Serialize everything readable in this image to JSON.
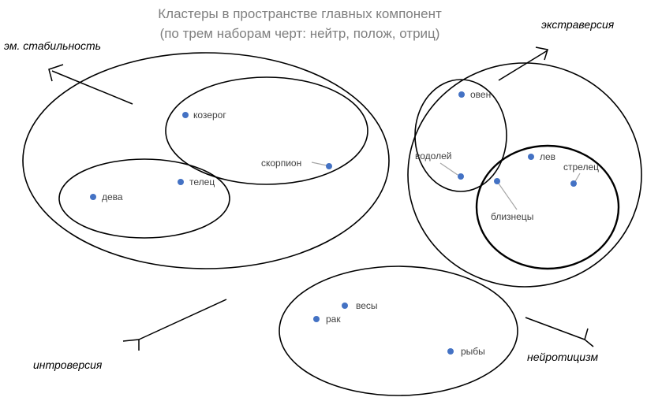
{
  "title_line1": "Кластеры в пространстве главных компонент",
  "title_line2": "(по трем наборам черт: нейтр, полож, отриц)",
  "axes": {
    "emotional_stability": "эм. стабильность",
    "extraversion": "экстраверсия",
    "introversion": "интроверсия",
    "neuroticism": "нейротицизм"
  },
  "signs": {
    "kozerog": "козерог",
    "skorpion": "скорпион",
    "deva": "дева",
    "telec": "телец",
    "oven": "овен",
    "vodoley": "водолей",
    "lev": "лев",
    "strelec": "стрелец",
    "bliznecy": "близнецы",
    "vesy": "весы",
    "rak": "рак",
    "ryby": "рыбы"
  },
  "colors": {
    "point": "#4472c4",
    "title": "#7f7f7f",
    "leader": "#a6a6a6"
  }
}
